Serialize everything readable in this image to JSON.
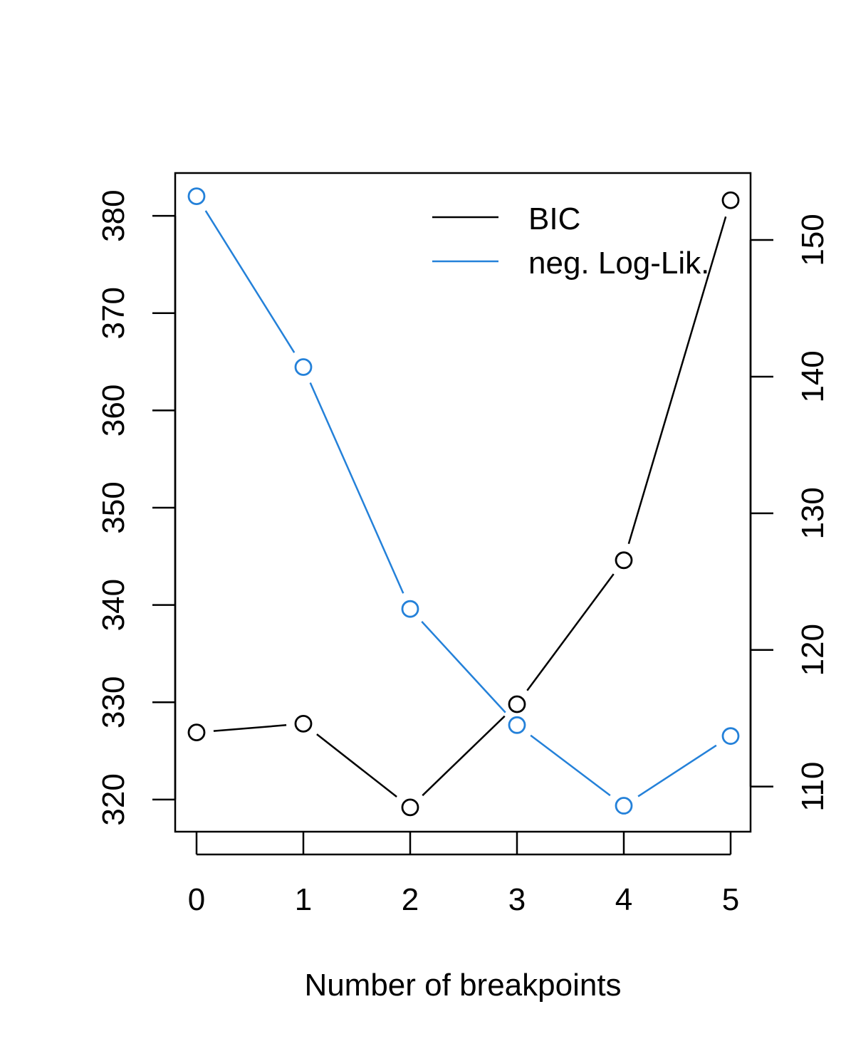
{
  "chart_data": {
    "type": "line",
    "xlabel": "Number of breakpoints",
    "x": [
      0,
      1,
      2,
      3,
      4,
      5
    ],
    "xticks": [
      "0",
      "1",
      "2",
      "3",
      "4",
      "5"
    ],
    "y_left": {
      "ticks": [
        320,
        330,
        340,
        350,
        360,
        370,
        380
      ],
      "range": [
        316.7,
        384.4
      ]
    },
    "y_right": {
      "ticks": [
        110,
        120,
        130,
        140,
        150
      ],
      "range": [
        106.7,
        154.9
      ]
    },
    "series": [
      {
        "name": "BIC",
        "axis": "left",
        "color": "#000000",
        "values": [
          326.9,
          327.8,
          319.2,
          329.8,
          344.6,
          381.6
        ]
      },
      {
        "name": "neg. Log-Lik.",
        "axis": "right",
        "color": "#2481d9",
        "values": [
          153.2,
          140.7,
          123.0,
          114.5,
          108.6,
          113.7
        ]
      }
    ],
    "legend": {
      "position": "top-right",
      "entries": [
        "BIC",
        "neg. Log-Lik."
      ]
    },
    "grid": false
  }
}
